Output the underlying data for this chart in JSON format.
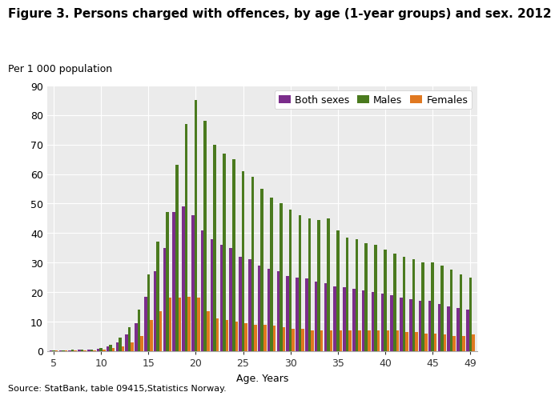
{
  "title": "Figure 3. Persons charged with offences, by age (1-year groups) and sex. 2012",
  "ylabel": "Per 1 000 population",
  "xlabel": "Age. Years",
  "source": "Source: StatBank, table 09415,Statistics Norway.",
  "ages": [
    5,
    6,
    7,
    8,
    9,
    10,
    11,
    12,
    13,
    14,
    15,
    16,
    17,
    18,
    19,
    20,
    21,
    22,
    23,
    24,
    25,
    26,
    27,
    28,
    29,
    30,
    31,
    32,
    33,
    34,
    35,
    36,
    37,
    38,
    39,
    40,
    41,
    42,
    43,
    44,
    45,
    46,
    47,
    48,
    49
  ],
  "both_sexes": [
    0.2,
    0.2,
    0.3,
    0.4,
    0.5,
    0.8,
    1.5,
    3.0,
    5.5,
    9.5,
    18.5,
    27.0,
    35.0,
    47.0,
    49.0,
    46.0,
    41.0,
    38.0,
    36.0,
    35.0,
    32.0,
    31.0,
    29.0,
    28.0,
    27.0,
    25.5,
    25.0,
    24.5,
    23.5,
    23.0,
    22.0,
    21.5,
    21.0,
    20.5,
    20.0,
    19.5,
    19.0,
    18.0,
    17.5,
    17.0,
    17.0,
    16.0,
    15.0,
    14.5,
    14.0
  ],
  "males": [
    0.3,
    0.3,
    0.4,
    0.5,
    0.6,
    1.0,
    2.0,
    4.5,
    8.0,
    14.0,
    26.0,
    37.0,
    47.0,
    63.0,
    77.0,
    85.0,
    78.0,
    70.0,
    67.0,
    65.0,
    61.0,
    59.0,
    55.0,
    52.0,
    50.0,
    48.0,
    46.0,
    45.0,
    44.5,
    45.0,
    41.0,
    38.5,
    38.0,
    36.5,
    36.0,
    34.5,
    33.0,
    32.0,
    31.0,
    30.0,
    30.0,
    29.0,
    27.5,
    26.0,
    25.0
  ],
  "females": [
    0.1,
    0.1,
    0.2,
    0.2,
    0.3,
    0.5,
    1.0,
    1.5,
    3.0,
    5.0,
    10.5,
    13.5,
    18.0,
    18.0,
    18.5,
    18.0,
    13.5,
    11.0,
    10.5,
    10.0,
    9.5,
    9.0,
    9.0,
    8.5,
    8.0,
    7.5,
    7.5,
    7.0,
    7.0,
    7.0,
    7.0,
    7.0,
    7.0,
    7.0,
    7.0,
    7.0,
    7.0,
    6.5,
    6.5,
    6.0,
    6.0,
    5.5,
    5.0,
    5.0,
    5.5
  ],
  "color_both": "#7B2D8B",
  "color_males": "#4A7A1E",
  "color_females": "#E07820",
  "ylim": [
    0,
    90
  ],
  "yticks": [
    0,
    10,
    20,
    30,
    40,
    50,
    60,
    70,
    80,
    90
  ],
  "xticks": [
    5,
    10,
    15,
    20,
    25,
    30,
    35,
    40,
    45,
    49
  ],
  "bg_color": "#EBEBEB",
  "title_fontsize": 11,
  "axis_label_fontsize": 9,
  "tick_fontsize": 9
}
